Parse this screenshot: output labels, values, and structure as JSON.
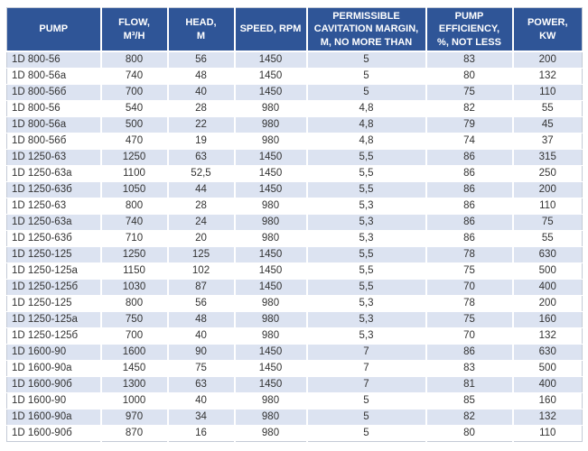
{
  "table": {
    "name": "pump-specifications-table",
    "header": {
      "columns": [
        {
          "id": "pump",
          "label": "PUMP"
        },
        {
          "id": "flow",
          "label": "FLOW,\nM³/H"
        },
        {
          "id": "head",
          "label": "HEAD,\nM"
        },
        {
          "id": "speed",
          "label": "SPEED, RPM"
        },
        {
          "id": "cavitation",
          "label": "PERMISSIBLE\nCAVITATION MARGIN,\nM, NO MORE THAN"
        },
        {
          "id": "efficiency",
          "label": "PUMP\nEFFICIENCY,\n%, NOT LESS"
        },
        {
          "id": "power",
          "label": "POWER,\nKW"
        }
      ]
    },
    "rows": [
      [
        "1D 800-56",
        "800",
        "56",
        "1450",
        "5",
        "83",
        "200"
      ],
      [
        "1D 800-56a",
        "740",
        "48",
        "1450",
        "5",
        "80",
        "132"
      ],
      [
        "1D 800-56б",
        "700",
        "40",
        "1450",
        "5",
        "75",
        "110"
      ],
      [
        "1D 800-56",
        "540",
        "28",
        "980",
        "4,8",
        "82",
        "55"
      ],
      [
        "1D 800-56a",
        "500",
        "22",
        "980",
        "4,8",
        "79",
        "45"
      ],
      [
        "1D 800-56б",
        "470",
        "19",
        "980",
        "4,8",
        "74",
        "37"
      ],
      [
        "1D 1250-63",
        "1250",
        "63",
        "1450",
        "5,5",
        "86",
        "315"
      ],
      [
        "1D 1250-63a",
        "1100",
        "52,5",
        "1450",
        "5,5",
        "86",
        "250"
      ],
      [
        "1D 1250-63б",
        "1050",
        "44",
        "1450",
        "5,5",
        "86",
        "200"
      ],
      [
        "1D 1250-63",
        "800",
        "28",
        "980",
        "5,3",
        "86",
        "110"
      ],
      [
        "1D 1250-63a",
        "740",
        "24",
        "980",
        "5,3",
        "86",
        "75"
      ],
      [
        "1D 1250-63б",
        "710",
        "20",
        "980",
        "5,3",
        "86",
        "55"
      ],
      [
        "1D 1250-125",
        "1250",
        "125",
        "1450",
        "5,5",
        "78",
        "630"
      ],
      [
        "1D 1250-125a",
        "1150",
        "102",
        "1450",
        "5,5",
        "75",
        "500"
      ],
      [
        "1D 1250-125б",
        "1030",
        "87",
        "1450",
        "5,5",
        "70",
        "400"
      ],
      [
        "1D 1250-125",
        "800",
        "56",
        "980",
        "5,3",
        "78",
        "200"
      ],
      [
        "1D 1250-125a",
        "750",
        "48",
        "980",
        "5,3",
        "75",
        "160"
      ],
      [
        "1D 1250-125б",
        "700",
        "40",
        "980",
        "5,3",
        "70",
        "132"
      ],
      [
        "1D 1600-90",
        "1600",
        "90",
        "1450",
        "7",
        "86",
        "630"
      ],
      [
        "1D 1600-90a",
        "1450",
        "75",
        "1450",
        "7",
        "83",
        "500"
      ],
      [
        "1D 1600-90б",
        "1300",
        "63",
        "1450",
        "7",
        "81",
        "400"
      ],
      [
        "1D 1600-90",
        "1000",
        "40",
        "980",
        "5",
        "85",
        "160"
      ],
      [
        "1D 1600-90a",
        "970",
        "34",
        "980",
        "5",
        "82",
        "132"
      ],
      [
        "1D 1600-90б",
        "870",
        "16",
        "980",
        "5",
        "80",
        "110"
      ]
    ]
  },
  "colors": {
    "header_bg": "#2F5597",
    "header_text": "#FFFFFF",
    "row_stripe": "#DCE3F1",
    "row_white": "#FFFFFF",
    "data_text": "#333333",
    "grid": "#FFFFFF",
    "outer_border": "#C4CAD6"
  }
}
